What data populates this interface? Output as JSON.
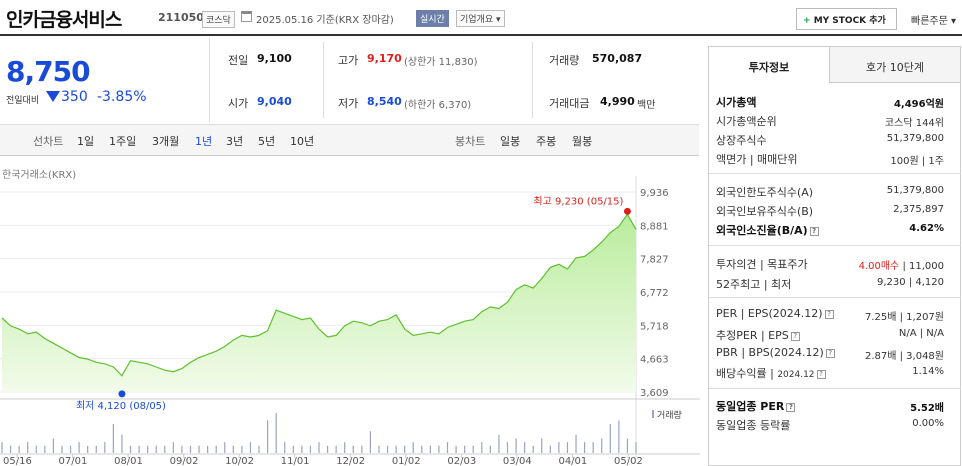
{
  "header": {
    "company_name": "인카금융서비스",
    "stock_code": "211050",
    "market_tag": "코스닥",
    "base_date": "2025.05.16  기준(KRX 장마감)",
    "realtime_tag": "실시간",
    "overview_label": "기업개요 ▾",
    "my_stock_label": "MY STOCK 추가",
    "quick_order_label": "빠른주문 ▾"
  },
  "quote": {
    "price": "8,750",
    "change_label": "전일대비",
    "change": "350",
    "change_pct": "-3.85%",
    "prev_label": "전일",
    "prev_value": "9,100",
    "high_label": "고가",
    "high_value": "9,170",
    "upper_limit": "(상한가 11,830)",
    "volume_label": "거래량",
    "volume_value": "570,087",
    "open_label": "시가",
    "open_value": "9,040",
    "low_label": "저가",
    "low_value": "8,540",
    "lower_limit": "(하한가 6,370)",
    "amount_label": "거래대금",
    "amount_value": "4,990",
    "amount_unit": "백만"
  },
  "periods": {
    "line_header": "선차트",
    "line_items": [
      "1일",
      "1주일",
      "3개월",
      "1년",
      "3년",
      "5년",
      "10년"
    ],
    "selected": "1년",
    "candle_header": "봉차트",
    "candle_items": [
      "일봉",
      "주봉",
      "월봉"
    ]
  },
  "chart_data": {
    "type": "area",
    "source": "한국거래소(KRX)",
    "y_ticks": [
      "9,936",
      "8,881",
      "7,827",
      "6,772",
      "5,718",
      "4,663",
      "3,609"
    ],
    "ylim": [
      3609,
      9936
    ],
    "x_ticks": [
      "05/16",
      "07/01",
      "08/01",
      "09/02",
      "10/02",
      "11/01",
      "12/02",
      "01/02",
      "02/03",
      "03/04",
      "04/01",
      "05/02"
    ],
    "high_label": "최고 9,230 (05/15)",
    "low_label": "최저 4,120 (08/05)",
    "volume_legend": "거래량",
    "values": [
      5950,
      5700,
      5600,
      5450,
      5500,
      5300,
      5150,
      5000,
      4850,
      4700,
      4650,
      4550,
      4500,
      4400,
      4120,
      4600,
      4550,
      4500,
      4400,
      4300,
      4250,
      4350,
      4550,
      4700,
      4800,
      4900,
      5050,
      5250,
      5400,
      5350,
      5400,
      5550,
      6200,
      6100,
      6000,
      5900,
      5950,
      5600,
      5350,
      5400,
      5700,
      5850,
      5800,
      5700,
      5850,
      5900,
      6050,
      5600,
      5400,
      5450,
      5500,
      5450,
      5650,
      5750,
      5850,
      5900,
      6150,
      6300,
      6250,
      6450,
      6850,
      7000,
      6900,
      7200,
      7550,
      7650,
      7500,
      7850,
      7900,
      8100,
      8350,
      8650,
      8850,
      9230,
      8750
    ],
    "volume": [
      3,
      2,
      2,
      3,
      2,
      2,
      4,
      2,
      2,
      3,
      2,
      2,
      3,
      8,
      5,
      2,
      2,
      2,
      2,
      2,
      3,
      2,
      2,
      2,
      2,
      2,
      3,
      2,
      2,
      3,
      2,
      9,
      11,
      3,
      2,
      2,
      2,
      3,
      2,
      2,
      3,
      2,
      2,
      6,
      2,
      2,
      2,
      2,
      3,
      2,
      2,
      2,
      3,
      2,
      2,
      2,
      3,
      2,
      5,
      3,
      4,
      3,
      2,
      4,
      2,
      3,
      3,
      5,
      3,
      3,
      4,
      8,
      9,
      4,
      3
    ]
  },
  "right_panel": {
    "tab_active": "투자정보",
    "tab_other": "호가 10단계",
    "market_cap_label": "시가총액",
    "market_cap_value": "4,496억원",
    "cap_rank_label": "시가총액순위",
    "cap_rank_value": "코스닥 144위",
    "shares_label": "상장주식수",
    "shares_value": "51,379,800",
    "face_label": "액면가 | 매매단위",
    "face_value": "100원 | 1주",
    "foreign_limit_label": "외국인한도주식수(A)",
    "foreign_limit_value": "51,379,800",
    "foreign_hold_label": "외국인보유주식수(B)",
    "foreign_hold_value": "2,375,897",
    "foreign_ratio_label": "외국인소진율(B/A)",
    "foreign_ratio_value": "4.62%",
    "opinion_label": "투자의견 | 목표주가",
    "opinion_value": "4.00매수",
    "target_value": "11,000",
    "week52_label": "52주최고 | 최저",
    "week52_value": "9,230 | 4,120",
    "per_label": "PER | EPS(2024.12)",
    "per_value": "7.25배 | 1,207원",
    "est_label": "추정PER | EPS",
    "est_value": "N/A | N/A",
    "pbr_label": "PBR | BPS(2024.12)",
    "pbr_value": "2.87배 | 3,048원",
    "div_label": "배당수익률",
    "div_period": "2024.12",
    "div_value": "1.14%",
    "ind_per_label": "동일업종 PER",
    "ind_per_value": "5.52배",
    "ind_chg_label": "동일업종 등락률",
    "ind_chg_value": "0.00%"
  }
}
